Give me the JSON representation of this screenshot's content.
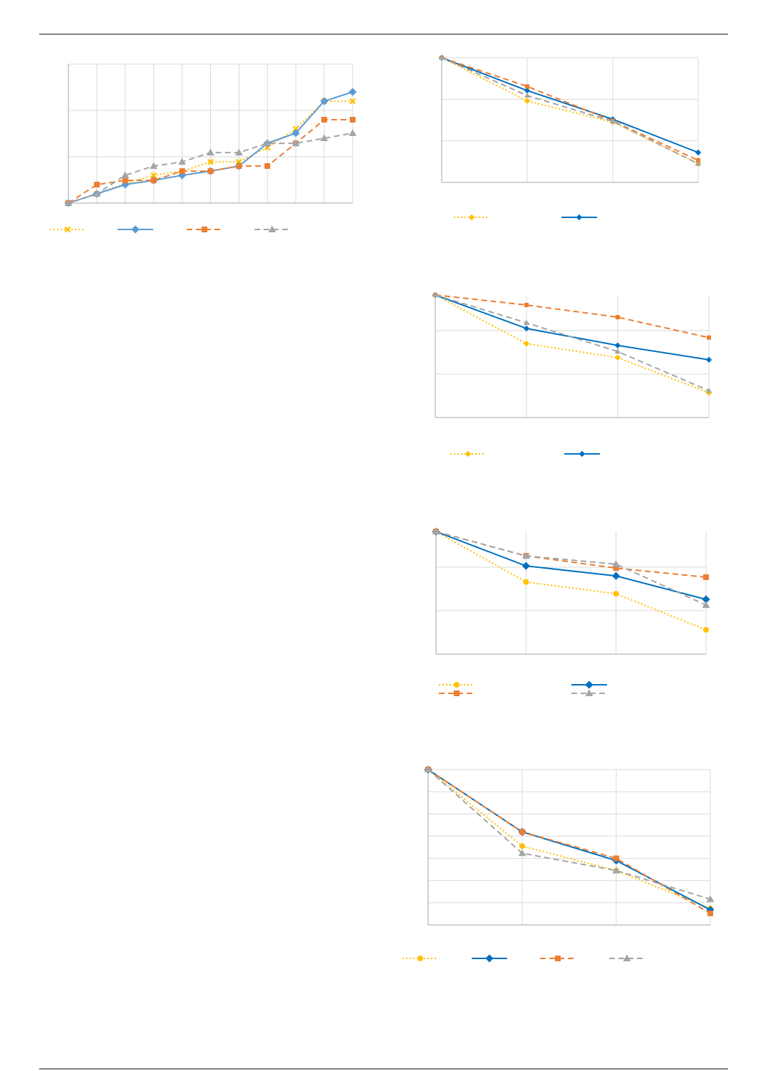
{
  "chart_data": [
    {
      "type": "line",
      "categories": [
        null,
        null,
        null,
        null,
        null,
        null,
        null,
        null,
        null,
        null,
        null
      ],
      "ylim": [
        0,
        3
      ],
      "yticks": [
        0,
        1,
        2,
        3
      ],
      "grid": true,
      "series": [
        {
          "color": "#ffc000",
          "dash": "dotted",
          "marker": "x",
          "values": [
            0,
            0.2,
            0.42,
            0.6,
            0.69,
            0.89,
            0.89,
            1.2,
            1.6,
            2.2,
            2.2
          ]
        },
        {
          "color": "#5b9bd5",
          "dash": "solid",
          "marker": "diamond",
          "values": [
            0,
            0.2,
            0.4,
            0.49,
            0.6,
            0.69,
            0.8,
            1.29,
            1.51,
            2.2,
            2.4
          ]
        },
        {
          "color": "#ed7d31",
          "dash": "dashed",
          "marker": "square",
          "values": [
            0,
            0.4,
            0.49,
            0.49,
            0.69,
            0.69,
            0.8,
            0.8,
            1.29,
            1.8,
            1.8
          ]
        },
        {
          "color": "#a5a5a5",
          "dash": "dashed",
          "marker": "triangle",
          "values": [
            0,
            0.2,
            0.6,
            0.8,
            0.89,
            1.09,
            1.09,
            1.29,
            1.29,
            1.4,
            1.51
          ]
        }
      ]
    },
    {
      "type": "line",
      "categories": [
        null,
        null,
        null,
        null
      ],
      "ylim": [
        0,
        3
      ],
      "yticks": [
        0,
        1,
        2,
        3
      ],
      "grid": true,
      "series": [
        {
          "color": "#ffc000",
          "dash": "dotted",
          "marker": "diamond",
          "values": [
            3,
            1.96,
            1.45,
            0.45
          ]
        },
        {
          "color": "#0070c0",
          "dash": "solid",
          "marker": "diamond",
          "values": [
            3,
            2.21,
            1.52,
            0.72
          ]
        },
        {
          "color": "#ed7d31",
          "dash": "dashed",
          "marker": "square",
          "legend": false,
          "values": [
            3,
            2.31,
            1.48,
            0.53
          ]
        },
        {
          "color": "#a5a5a5",
          "dash": "dashed",
          "marker": "triangle",
          "legend": false,
          "values": [
            3,
            2.09,
            1.47,
            0.45
          ]
        }
      ]
    },
    {
      "type": "line",
      "categories": [
        null,
        null,
        null,
        null
      ],
      "ylim": [
        0,
        2.82
      ],
      "yticks": [
        0,
        1,
        2
      ],
      "grid": true,
      "series": [
        {
          "color": "#ffc000",
          "dash": "dotted",
          "marker": "diamond",
          "values": [
            2.82,
            1.7,
            1.38,
            0.57
          ]
        },
        {
          "color": "#0070c0",
          "dash": "solid",
          "marker": "diamond",
          "values": [
            2.82,
            2.05,
            1.66,
            1.33
          ]
        },
        {
          "color": "#ed7d31",
          "dash": "dashed",
          "marker": "square",
          "legend": false,
          "values": [
            2.82,
            2.59,
            2.31,
            1.84
          ]
        },
        {
          "color": "#a5a5a5",
          "dash": "dashed",
          "marker": "triangle",
          "legend": false,
          "values": [
            2.82,
            2.18,
            1.52,
            0.62
          ]
        }
      ]
    },
    {
      "type": "line",
      "categories": [
        null,
        null,
        null,
        null
      ],
      "ylim": [
        0,
        2.82
      ],
      "yticks": [
        0,
        1,
        2
      ],
      "grid": true,
      "series": [
        {
          "color": "#ffc000",
          "dash": "dotted",
          "marker": "circle",
          "values": [
            2.82,
            1.66,
            1.39,
            0.56
          ]
        },
        {
          "color": "#0070c0",
          "dash": "solid",
          "marker": "diamond",
          "values": [
            2.82,
            2.03,
            1.8,
            1.26
          ]
        },
        {
          "color": "#ed7d31",
          "dash": "dashed",
          "marker": "square",
          "values": [
            2.82,
            2.26,
            1.98,
            1.77
          ]
        },
        {
          "color": "#a5a5a5",
          "dash": "dashed",
          "marker": "triangle",
          "values": [
            2.82,
            2.26,
            2.07,
            1.13
          ]
        }
      ]
    },
    {
      "type": "line",
      "categories": [
        null,
        null,
        null,
        null
      ],
      "ylim": [
        0,
        7
      ],
      "yticks": [
        0,
        1,
        2,
        3,
        4,
        5,
        6,
        7
      ],
      "grid": true,
      "series": [
        {
          "color": "#ffc000",
          "dash": "dotted",
          "marker": "circle",
          "values": [
            7,
            3.55,
            2.45,
            0.74
          ]
        },
        {
          "color": "#0070c0",
          "dash": "solid",
          "marker": "diamond",
          "values": [
            7,
            4.19,
            2.9,
            0.68
          ]
        },
        {
          "color": "#ed7d31",
          "dash": "dashed",
          "marker": "square",
          "values": [
            7,
            4.19,
            3.0,
            0.52
          ]
        },
        {
          "color": "#a5a5a5",
          "dash": "dashed",
          "marker": "triangle",
          "values": [
            7,
            3.23,
            2.45,
            1.16
          ]
        }
      ]
    }
  ]
}
